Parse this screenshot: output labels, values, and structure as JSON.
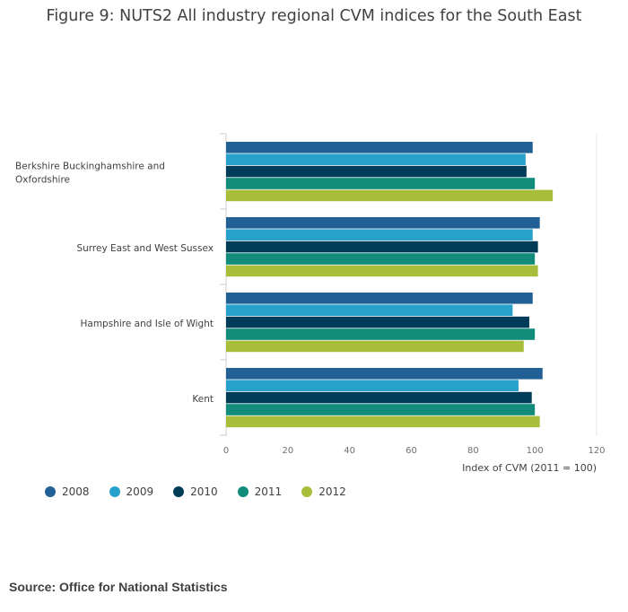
{
  "chart_data": {
    "type": "bar",
    "orientation": "horizontal",
    "title": "Figure 9: NUTS2 All industry regional CVM indices for the South East",
    "xlabel": "Index of CVM (2011 = 100)",
    "ylabel": "",
    "xlim": [
      0,
      120
    ],
    "ticks": [
      "0",
      "20",
      "40",
      "60",
      "80",
      "100",
      "120"
    ],
    "tick_values": [
      0,
      20,
      40,
      60,
      80,
      100,
      120
    ],
    "grid": false,
    "legend_position": "bottom-left",
    "categories": [
      [
        "Berkshire Buckinghamshire and",
        "Oxfordshire"
      ],
      [
        "Surrey East and West Sussex"
      ],
      [
        "Hampshire and Isle of Wight"
      ],
      [
        "Kent"
      ]
    ],
    "series": [
      {
        "name": "2008",
        "color": "#206095",
        "values": [
          99.3,
          101.6,
          99.3,
          102.5
        ]
      },
      {
        "name": "2009",
        "color": "#27a0cc",
        "values": [
          97.0,
          99.3,
          92.8,
          94.7
        ]
      },
      {
        "name": "2010",
        "color": "#003c57",
        "values": [
          97.3,
          101.0,
          98.2,
          99.0
        ]
      },
      {
        "name": "2011",
        "color": "#118c7b",
        "values": [
          100.0,
          100.0,
          100.0,
          100.0
        ]
      },
      {
        "name": "2012",
        "color": "#a8bd3a",
        "values": [
          105.8,
          101.0,
          96.4,
          101.6
        ]
      }
    ]
  },
  "source": "Source: Office for National Statistics"
}
